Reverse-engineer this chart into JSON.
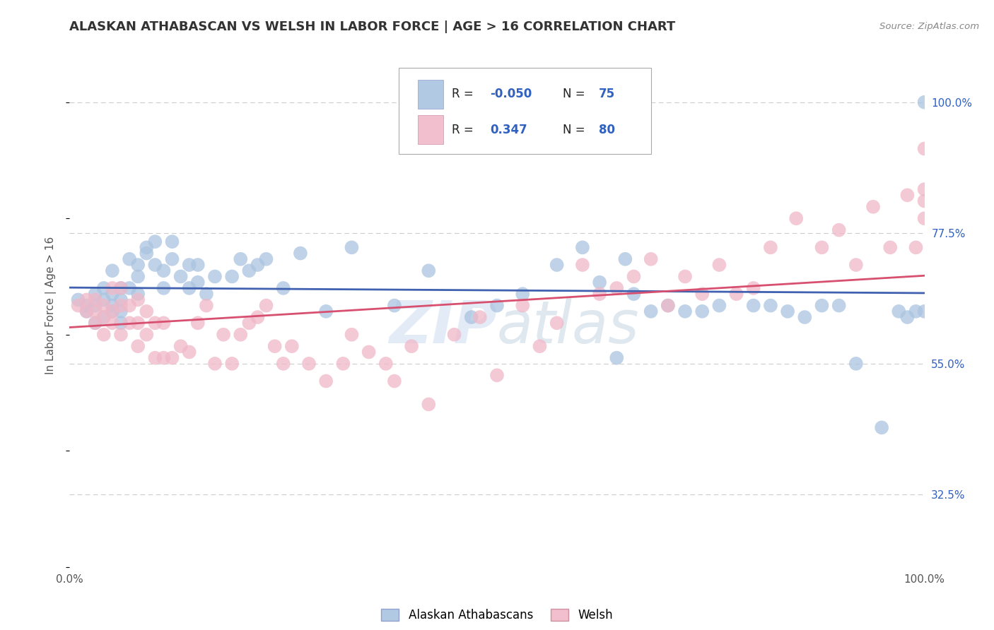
{
  "title": "ALASKAN ATHABASCAN VS WELSH IN LABOR FORCE | AGE > 16 CORRELATION CHART",
  "source": "Source: ZipAtlas.com",
  "ylabel": "In Labor Force | Age > 16",
  "xlim": [
    0.0,
    1.0
  ],
  "ylim": [
    0.2,
    1.1
  ],
  "ytick_vals": [
    0.325,
    0.55,
    0.775,
    1.0
  ],
  "ytick_labels": [
    "32.5%",
    "55.0%",
    "77.5%",
    "100.0%"
  ],
  "R_blue": -0.05,
  "N_blue": 75,
  "R_pink": 0.347,
  "N_pink": 80,
  "blue_color": "#aac4e0",
  "pink_color": "#f0b8c8",
  "blue_line_color": "#4060b0",
  "pink_line_color": "#d85070",
  "watermark": "ZIPatlas",
  "background_color": "#ffffff",
  "grid_color": "#cccccc",
  "blue_scatter_x": [
    0.01,
    0.02,
    0.02,
    0.03,
    0.03,
    0.03,
    0.04,
    0.04,
    0.04,
    0.05,
    0.05,
    0.05,
    0.05,
    0.06,
    0.06,
    0.06,
    0.06,
    0.07,
    0.07,
    0.08,
    0.08,
    0.08,
    0.09,
    0.09,
    0.1,
    0.1,
    0.11,
    0.11,
    0.12,
    0.12,
    0.13,
    0.14,
    0.14,
    0.15,
    0.15,
    0.16,
    0.17,
    0.19,
    0.2,
    0.21,
    0.22,
    0.23,
    0.25,
    0.27,
    0.3,
    0.33,
    0.38,
    0.42,
    0.47,
    0.5,
    0.53,
    0.57,
    0.6,
    0.62,
    0.64,
    0.65,
    0.66,
    0.68,
    0.7,
    0.72,
    0.74,
    0.76,
    0.8,
    0.82,
    0.84,
    0.86,
    0.88,
    0.9,
    0.92,
    0.95,
    0.97,
    0.98,
    0.99,
    1.0,
    1.0
  ],
  "blue_scatter_y": [
    0.66,
    0.65,
    0.64,
    0.67,
    0.65,
    0.62,
    0.66,
    0.68,
    0.63,
    0.67,
    0.65,
    0.64,
    0.71,
    0.66,
    0.68,
    0.64,
    0.62,
    0.68,
    0.73,
    0.72,
    0.7,
    0.67,
    0.74,
    0.75,
    0.72,
    0.76,
    0.68,
    0.71,
    0.76,
    0.73,
    0.7,
    0.68,
    0.72,
    0.69,
    0.72,
    0.67,
    0.7,
    0.7,
    0.73,
    0.71,
    0.72,
    0.73,
    0.68,
    0.74,
    0.64,
    0.75,
    0.65,
    0.71,
    0.63,
    0.65,
    0.67,
    0.72,
    0.75,
    0.69,
    0.56,
    0.73,
    0.67,
    0.64,
    0.65,
    0.64,
    0.64,
    0.65,
    0.65,
    0.65,
    0.64,
    0.63,
    0.65,
    0.65,
    0.55,
    0.44,
    0.64,
    0.63,
    0.64,
    0.64,
    1.0
  ],
  "pink_scatter_x": [
    0.01,
    0.02,
    0.02,
    0.03,
    0.03,
    0.03,
    0.04,
    0.04,
    0.04,
    0.05,
    0.05,
    0.05,
    0.06,
    0.06,
    0.06,
    0.07,
    0.07,
    0.08,
    0.08,
    0.08,
    0.09,
    0.09,
    0.1,
    0.1,
    0.11,
    0.11,
    0.12,
    0.13,
    0.14,
    0.15,
    0.16,
    0.17,
    0.18,
    0.19,
    0.2,
    0.21,
    0.22,
    0.23,
    0.24,
    0.25,
    0.26,
    0.28,
    0.3,
    0.32,
    0.33,
    0.35,
    0.37,
    0.38,
    0.4,
    0.42,
    0.45,
    0.48,
    0.5,
    0.53,
    0.55,
    0.57,
    0.6,
    0.62,
    0.64,
    0.66,
    0.68,
    0.7,
    0.72,
    0.74,
    0.76,
    0.78,
    0.8,
    0.82,
    0.85,
    0.88,
    0.9,
    0.92,
    0.94,
    0.96,
    0.98,
    0.99,
    1.0,
    1.0,
    1.0,
    1.0
  ],
  "pink_scatter_y": [
    0.65,
    0.64,
    0.66,
    0.64,
    0.62,
    0.66,
    0.6,
    0.65,
    0.63,
    0.62,
    0.64,
    0.68,
    0.6,
    0.65,
    0.68,
    0.62,
    0.65,
    0.58,
    0.62,
    0.66,
    0.6,
    0.64,
    0.56,
    0.62,
    0.56,
    0.62,
    0.56,
    0.58,
    0.57,
    0.62,
    0.65,
    0.55,
    0.6,
    0.55,
    0.6,
    0.62,
    0.63,
    0.65,
    0.58,
    0.55,
    0.58,
    0.55,
    0.52,
    0.55,
    0.6,
    0.57,
    0.55,
    0.52,
    0.58,
    0.48,
    0.6,
    0.63,
    0.53,
    0.65,
    0.58,
    0.62,
    0.72,
    0.67,
    0.68,
    0.7,
    0.73,
    0.65,
    0.7,
    0.67,
    0.72,
    0.67,
    0.68,
    0.75,
    0.8,
    0.75,
    0.78,
    0.72,
    0.82,
    0.75,
    0.84,
    0.75,
    0.8,
    0.83,
    0.85,
    0.92
  ]
}
